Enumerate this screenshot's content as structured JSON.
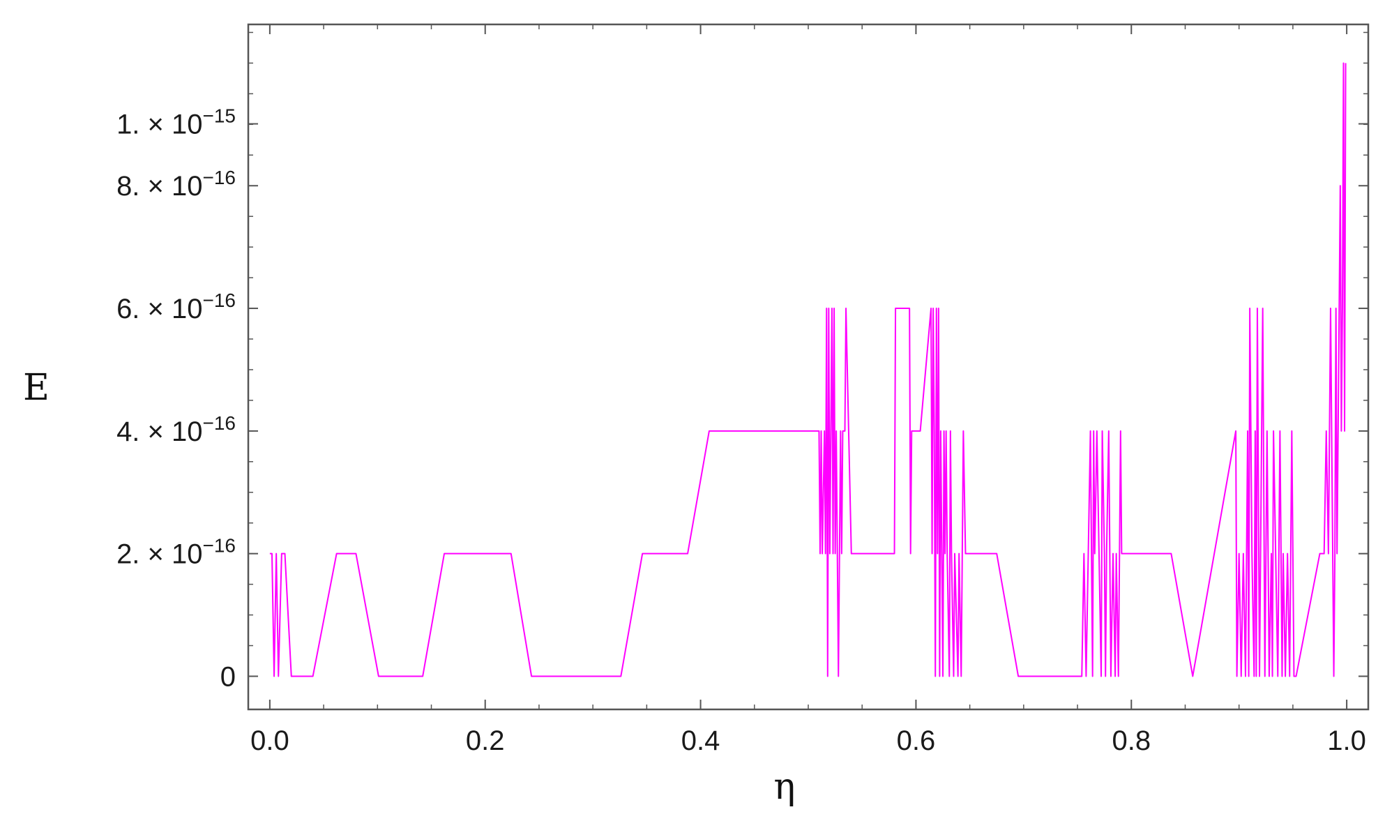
{
  "chart_data": {
    "type": "line",
    "xlabel": "η",
    "ylabel": "E",
    "xlim": [
      -0.02,
      1.02
    ],
    "ylim": [
      -6e-17,
      1.18e-15
    ],
    "x_ticks": [
      {
        "value": 0.0,
        "label": "0.0"
      },
      {
        "value": 0.2,
        "label": "0.2"
      },
      {
        "value": 0.4,
        "label": "0.4"
      },
      {
        "value": 0.6,
        "label": "0.6"
      },
      {
        "value": 0.8,
        "label": "0.8"
      },
      {
        "value": 1.0,
        "label": "1.0"
      }
    ],
    "y_ticks": [
      {
        "value": 0,
        "label": "0",
        "exp": ""
      },
      {
        "value": 2.22e-16,
        "label": "2. × 10",
        "exp": "−16"
      },
      {
        "value": 4.44e-16,
        "label": "4. × 10",
        "exp": "−16"
      },
      {
        "value": 6.66e-16,
        "label": "6. × 10",
        "exp": "−16"
      },
      {
        "value": 8.88e-16,
        "label": "8. × 10",
        "exp": "−16"
      },
      {
        "value": 1e-15,
        "label": "1. × 10",
        "exp": "−15"
      }
    ],
    "grid": false,
    "series": [
      {
        "color": "#ff00ff",
        "x": [
          0.0,
          0.002,
          0.004,
          0.006,
          0.008,
          0.011,
          0.014,
          0.02,
          0.04,
          0.062,
          0.08,
          0.101,
          0.142,
          0.162,
          0.224,
          0.243,
          0.326,
          0.346,
          0.388,
          0.408,
          0.51,
          0.511,
          0.512,
          0.513,
          0.515,
          0.516,
          0.517,
          0.518,
          0.519,
          0.52,
          0.521,
          0.522,
          0.523,
          0.524,
          0.525,
          0.526,
          0.527,
          0.528,
          0.529,
          0.53,
          0.531,
          0.532,
          0.534,
          0.535,
          0.54,
          0.541,
          0.542,
          0.545,
          0.58,
          0.581,
          0.582,
          0.594,
          0.595,
          0.596,
          0.602,
          0.604,
          0.614,
          0.615,
          0.616,
          0.617,
          0.618,
          0.619,
          0.62,
          0.621,
          0.622,
          0.623,
          0.625,
          0.626,
          0.627,
          0.628,
          0.629,
          0.631,
          0.632,
          0.633,
          0.635,
          0.636,
          0.639,
          0.64,
          0.642,
          0.644,
          0.646,
          0.655,
          0.675,
          0.695,
          0.754,
          0.756,
          0.758,
          0.762,
          0.764,
          0.765,
          0.766,
          0.768,
          0.77,
          0.772,
          0.773,
          0.775,
          0.776,
          0.777,
          0.779,
          0.781,
          0.783,
          0.785,
          0.786,
          0.788,
          0.79,
          0.791,
          0.837,
          0.857,
          0.897,
          0.898,
          0.9,
          0.902,
          0.904,
          0.906,
          0.907,
          0.908,
          0.909,
          0.91,
          0.912,
          0.914,
          0.915,
          0.916,
          0.917,
          0.919,
          0.92,
          0.922,
          0.924,
          0.926,
          0.928,
          0.93,
          0.931,
          0.932,
          0.934,
          0.936,
          0.938,
          0.94,
          0.941,
          0.943,
          0.945,
          0.947,
          0.949,
          0.951,
          0.953,
          0.975,
          0.977,
          0.979,
          0.981,
          0.983,
          0.985,
          0.988,
          0.989,
          0.99,
          0.991,
          0.992,
          0.993,
          0.994,
          0.995,
          0.996,
          0.997,
          0.998,
          0.999
        ],
        "y": [
          2.22e-16,
          2.22e-16,
          0,
          2.22e-16,
          0,
          2.22e-16,
          2.22e-16,
          0,
          0,
          2.22e-16,
          2.22e-16,
          0,
          0,
          2.22e-16,
          2.22e-16,
          0,
          0,
          2.22e-16,
          2.22e-16,
          4.44e-16,
          4.44e-16,
          2.22e-16,
          4.44e-16,
          2.22e-16,
          4.44e-16,
          2.22e-16,
          6.66e-16,
          0,
          6.66e-16,
          2.22e-16,
          4.44e-16,
          6.66e-16,
          2.22e-16,
          6.66e-16,
          2.22e-16,
          4.44e-16,
          2.22e-16,
          0,
          2.22e-16,
          4.44e-16,
          2.22e-16,
          4.44e-16,
          4.44e-16,
          6.66e-16,
          2.22e-16,
          2.22e-16,
          2.22e-16,
          2.22e-16,
          2.22e-16,
          6.66e-16,
          6.66e-16,
          6.66e-16,
          2.22e-16,
          4.44e-16,
          4.44e-16,
          4.44e-16,
          6.66e-16,
          2.22e-16,
          6.66e-16,
          4.44e-16,
          0,
          6.66e-16,
          2.22e-16,
          6.66e-16,
          0,
          4.44e-16,
          0,
          4.44e-16,
          2.22e-16,
          4.44e-16,
          2.22e-16,
          0,
          4.44e-16,
          2.22e-16,
          0,
          2.22e-16,
          0,
          2.22e-16,
          0,
          4.44e-16,
          2.22e-16,
          2.22e-16,
          2.22e-16,
          0,
          0,
          2.22e-16,
          0,
          4.44e-16,
          0,
          4.44e-16,
          2.22e-16,
          4.44e-16,
          2.22e-16,
          0,
          4.44e-16,
          2.22e-16,
          0,
          2.22e-16,
          4.44e-16,
          0,
          2.22e-16,
          0,
          2.22e-16,
          0,
          4.44e-16,
          2.22e-16,
          2.22e-16,
          0,
          4.44e-16,
          0,
          2.22e-16,
          0,
          2.22e-16,
          0,
          2.22e-16,
          4.44e-16,
          0,
          6.66e-16,
          2.22e-16,
          0,
          4.44e-16,
          0,
          6.66e-16,
          0,
          2.22e-16,
          6.66e-16,
          0,
          4.44e-16,
          0,
          2.22e-16,
          0,
          4.44e-16,
          2.22e-16,
          0,
          4.44e-16,
          0,
          2.22e-16,
          0,
          2.22e-16,
          0,
          4.44e-16,
          0,
          0,
          2.22e-16,
          2.22e-16,
          2.22e-16,
          4.44e-16,
          2.22e-16,
          6.66e-16,
          0,
          2.22e-16,
          6.66e-16,
          2.22e-16,
          4.44e-16,
          6.66e-16,
          8.88e-16,
          4.44e-16,
          6.66e-16,
          1.11e-15,
          4.44e-16,
          1.11e-15
        ]
      }
    ]
  }
}
